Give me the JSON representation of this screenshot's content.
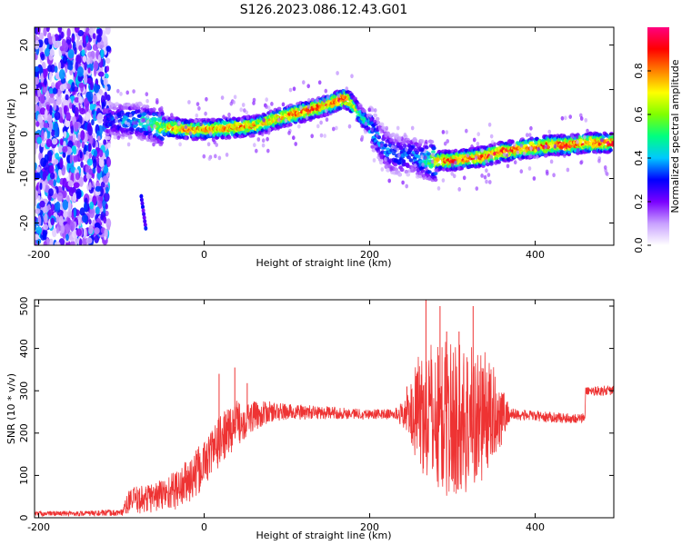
{
  "title": "S126.2023.086.12.43.G01",
  "chart_data": [
    {
      "type": "heatmap",
      "title": "S126.2023.086.12.43.G01",
      "xlabel": "Height of straight line (km)",
      "ylabel": "Frequency (Hz)",
      "xlim": [
        -205,
        495
      ],
      "ylim": [
        -25,
        24
      ],
      "xticks": [
        -200,
        0,
        200,
        400
      ],
      "yticks": [
        -20,
        -10,
        0,
        10,
        20
      ],
      "colorbar": {
        "label": "Normalized spectral amplitude",
        "range": [
          0,
          1
        ],
        "ticks": [
          0.0,
          0.2,
          0.4,
          0.6,
          0.8
        ],
        "colors": [
          "#ffffff",
          "#c8a0ff",
          "#7a00ff",
          "#0000ff",
          "#00c8ff",
          "#00ff80",
          "#80ff00",
          "#ffff00",
          "#ff8000",
          "#ff0000",
          "#ff0080"
        ]
      },
      "noise_region_x": [
        -205,
        -115
      ],
      "outlier_blob": {
        "x": -73,
        "y": -18,
        "amplitude": 0.3
      },
      "ridge": {
        "x": [
          -120,
          -100,
          -80,
          -60,
          -50,
          -40,
          -20,
          0,
          20,
          40,
          60,
          70,
          80,
          100,
          120,
          140,
          160,
          170,
          175,
          180,
          190,
          200,
          210,
          220,
          230,
          240,
          250,
          260,
          270,
          280,
          290,
          300,
          320,
          340,
          360,
          380,
          400,
          420,
          440,
          460,
          480,
          495
        ],
        "y": [
          3,
          3,
          3,
          2,
          1.5,
          1.5,
          1,
          1,
          1.2,
          1.5,
          1.8,
          2.2,
          3,
          4,
          5,
          6,
          7.3,
          8,
          7.5,
          6.5,
          4,
          2,
          -1,
          -3.5,
          -4.5,
          -5,
          -4.5,
          -5.5,
          -6,
          -6,
          -6,
          -6,
          -5.5,
          -5,
          -4,
          -3.5,
          -3,
          -2.5,
          -2.5,
          -2,
          -2,
          -2
        ],
        "amplitude": [
          0.3,
          0.4,
          0.45,
          0.55,
          0.7,
          0.8,
          0.8,
          0.82,
          0.82,
          0.85,
          0.8,
          0.75,
          0.8,
          0.85,
          0.88,
          0.9,
          0.92,
          0.93,
          0.9,
          0.75,
          0.55,
          0.45,
          0.4,
          0.38,
          0.36,
          0.35,
          0.35,
          0.38,
          0.5,
          0.7,
          0.85,
          0.9,
          0.88,
          0.9,
          0.9,
          0.9,
          0.9,
          0.9,
          0.9,
          0.9,
          0.9,
          0.9
        ]
      }
    },
    {
      "type": "line",
      "xlabel": "Height of straight line (km)",
      "ylabel": "SNR (10 * v/v)",
      "xlim": [
        -205,
        495
      ],
      "ylim": [
        0,
        515
      ],
      "xticks": [
        -200,
        0,
        200,
        400
      ],
      "yticks": [
        0,
        100,
        200,
        300,
        400,
        500
      ],
      "color": "#ee3333",
      "envelope": {
        "x": [
          -205,
          -150,
          -100,
          -90,
          -70,
          -50,
          -30,
          -10,
          0,
          20,
          40,
          60,
          80,
          100,
          150,
          200,
          230,
          245,
          260,
          280,
          300,
          320,
          340,
          360,
          370,
          400,
          440,
          460,
          461,
          480,
          495
        ],
        "center": [
          10,
          10,
          12,
          40,
          45,
          55,
          70,
          100,
          130,
          185,
          225,
          240,
          250,
          250,
          248,
          245,
          245,
          245,
          250,
          240,
          230,
          235,
          245,
          245,
          245,
          240,
          235,
          235,
          300,
          300,
          300
        ],
        "spread": [
          6,
          6,
          8,
          30,
          35,
          40,
          50,
          60,
          55,
          60,
          55,
          35,
          25,
          20,
          15,
          12,
          12,
          40,
          140,
          180,
          190,
          185,
          150,
          70,
          15,
          12,
          12,
          12,
          10,
          12,
          12
        ]
      },
      "spikes": [
        {
          "x": 18,
          "y": 340
        },
        {
          "x": 37,
          "y": 355
        },
        {
          "x": 52,
          "y": 318
        },
        {
          "x": 245,
          "y": 310
        },
        {
          "x": 268,
          "y": 515
        },
        {
          "x": 285,
          "y": 500
        },
        {
          "x": 293,
          "y": 440
        },
        {
          "x": 308,
          "y": 440
        },
        {
          "x": 325,
          "y": 500
        }
      ]
    }
  ]
}
